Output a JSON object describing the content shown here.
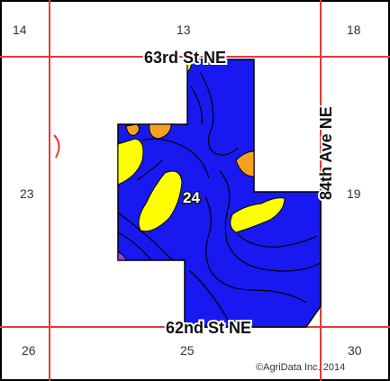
{
  "map": {
    "sections": {
      "s14": "14",
      "s13": "13",
      "s18": "18",
      "s23": "23",
      "s24": "24",
      "s19": "19",
      "s26": "26",
      "s25": "25",
      "s30": "30"
    },
    "roads": {
      "north": "63rd St NE",
      "south": "62nd St NE",
      "east": "84th Ave NE"
    },
    "copyright": "©AgriData Inc. 2014",
    "colors": {
      "background": "#ffffff",
      "section_line": "#e53935",
      "field_fill": "#1818f0",
      "zone_yellow": "#ffff00",
      "zone_orange": "#f5a020",
      "zone_purple": "#9a3fd0",
      "contour": "#000000",
      "map_frame": "#000000"
    }
  }
}
